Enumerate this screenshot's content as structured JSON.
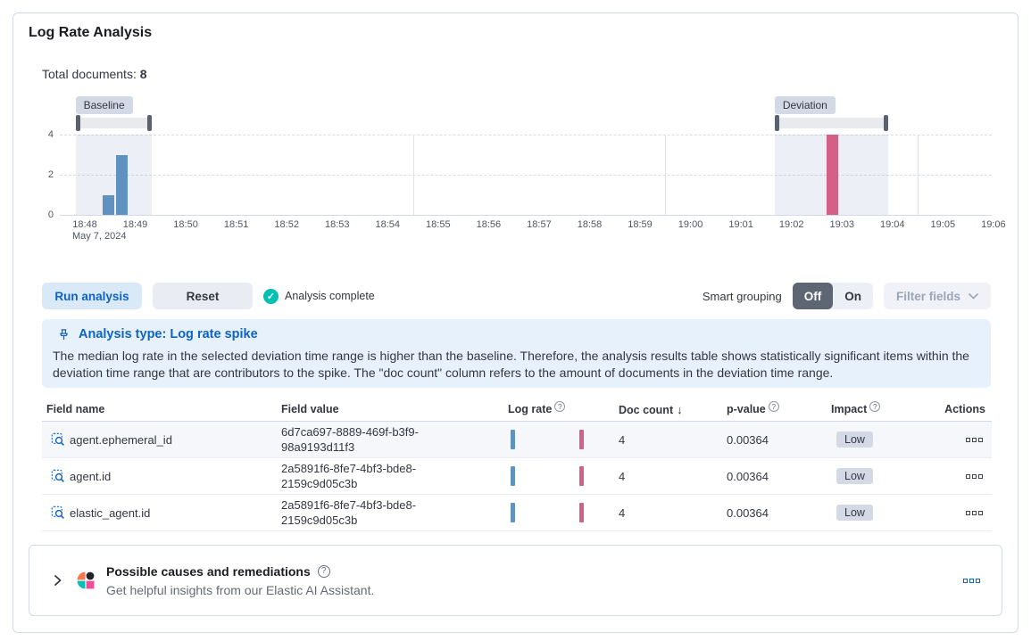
{
  "page": {
    "title": "Log Rate Analysis"
  },
  "summary": {
    "label": "Total documents:",
    "value": "8"
  },
  "chart_data": {
    "type": "bar",
    "ylabel": "",
    "xlabel": "",
    "ylim": [
      0,
      4
    ],
    "y_ticks": [
      0,
      2,
      4
    ],
    "x_ticks": [
      "18:48",
      "18:49",
      "18:50",
      "18:51",
      "18:52",
      "18:53",
      "18:54",
      "18:55",
      "18:56",
      "18:57",
      "18:58",
      "18:59",
      "19:00",
      "19:01",
      "19:02",
      "19:03",
      "19:04",
      "19:05",
      "19:06"
    ],
    "x_first_tick_sublabel": "May 7, 2024",
    "v_gridlines": [
      "18:55",
      "19:00",
      "19:05"
    ],
    "series": [
      {
        "name": "baseline-doc-count",
        "color": "#6092C0",
        "points": [
          {
            "time": "18:48:58",
            "count": 1
          },
          {
            "time": "18:49:14",
            "count": 3
          }
        ]
      },
      {
        "name": "deviation-doc-count",
        "color": "#D36086",
        "points": [
          {
            "time": "19:03:19",
            "count": 4
          }
        ]
      }
    ],
    "brushes": [
      {
        "label": "Baseline",
        "start": "18:48:19",
        "end": "18:49:50"
      },
      {
        "label": "Deviation",
        "start": "19:02:10",
        "end": "19:04:25"
      }
    ]
  },
  "controls": {
    "run_button": "Run analysis",
    "reset_button": "Reset",
    "status": "Analysis complete",
    "smart_grouping_label": "Smart grouping",
    "toggle_off": "Off",
    "toggle_on": "On",
    "filter_fields": "Filter fields"
  },
  "callout": {
    "title": "Analysis type: Log rate spike",
    "body": "The median log rate in the selected deviation time range is higher than the baseline. Therefore, the analysis results table shows statistically significant items within the deviation time range that are contributors to the spike. The \"doc count\" column refers to the amount of documents in the deviation time range."
  },
  "table": {
    "headers": {
      "field_name": "Field name",
      "field_value": "Field value",
      "log_rate": "Log rate",
      "doc_count": "Doc count",
      "p_value": "p-value",
      "impact": "Impact",
      "actions": "Actions"
    },
    "rows": [
      {
        "field_name": "agent.ephemeral_id",
        "field_value": "6d7ca697-8889-469f-b3f9-98a9193d11f3",
        "doc_count": "4",
        "p_value": "0.00364",
        "impact": "Low"
      },
      {
        "field_name": "agent.id",
        "field_value": "2a5891f6-8fe7-4bf3-bde8-2159c9d05c3b",
        "doc_count": "4",
        "p_value": "0.00364",
        "impact": "Low"
      },
      {
        "field_name": "elastic_agent.id",
        "field_value": "2a5891f6-8fe7-4bf3-bde8-2159c9d05c3b",
        "doc_count": "4",
        "p_value": "0.00364",
        "impact": "Low"
      }
    ]
  },
  "footer": {
    "title": "Possible causes and remediations",
    "subtitle": "Get helpful insights from our Elastic AI Assistant."
  },
  "colors": {
    "primary_blue": "#0E63C5",
    "bar_baseline": "#6092C0",
    "bar_deviation": "#D36086",
    "success_teal": "#00BFB3",
    "callout_bg": "#E7F1FB",
    "badge_bg": "#D3DAE6",
    "border": "#D3DAE6",
    "text": "#343741",
    "text_subdued": "#646A77",
    "toggle_selected_bg": "#5E6573",
    "ai_icon_colors": [
      "#FA744E",
      "#20232B",
      "#00BFB3",
      "#F04E98"
    ]
  }
}
